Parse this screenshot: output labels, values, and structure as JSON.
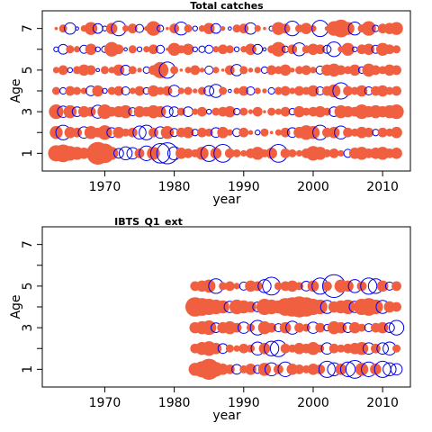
{
  "chart_data": [
    {
      "type": "bubble",
      "title": "Total catches",
      "xlabel": "year",
      "ylabel": "Age",
      "xlim": [
        1961,
        2014
      ],
      "ylim": [
        0.15,
        7.85
      ],
      "xticks": [
        1970,
        1980,
        1990,
        2000,
        2010
      ],
      "yticks": [
        1,
        2,
        3,
        4,
        5,
        6,
        7
      ],
      "ytick_labels": [
        "1",
        "",
        "3",
        "",
        "5",
        "",
        "7"
      ],
      "grid": false,
      "legend": "none",
      "years": [
        1963,
        2012
      ],
      "ages": [
        1,
        2,
        3,
        4,
        5,
        6,
        7
      ],
      "series": [
        {
          "kind": "filled",
          "color": "#F06040",
          "meaning": "positive residual"
        },
        {
          "kind": "open",
          "color": "#0000EE",
          "meaning": "negative residual"
        }
      ],
      "residuals": [
        {
          "age": 7,
          "values": [
            0.2,
            0.5,
            -0.7,
            -0.2,
            0.4,
            0.8,
            -0.6,
            -0.3,
            0.7,
            -0.9,
            0.4,
            0.6,
            -0.5,
            0.3,
            0.9,
            -0.4,
            0.2,
            0.6,
            -0.8,
            0.5,
            -0.3,
            0.4,
            0.7,
            -0.6,
            0.3,
            -0.2,
            0.5,
            0.6,
            -0.7,
            0.4,
            0.2,
            -0.3,
            0.8,
            0.6,
            -0.9,
            0.5,
            0.7,
            0.4,
            -1.0,
            0.3,
            0.9,
            1.1,
            0.8,
            -0.8,
            0.5,
            0.9,
            -0.4,
            0.6,
            0.7,
            0.8
          ]
        },
        {
          "age": 6,
          "values": [
            -0.3,
            -0.6,
            0.5,
            0.4,
            -0.5,
            0.7,
            -0.3,
            -0.4,
            0.9,
            0.6,
            -0.2,
            0.5,
            -0.3,
            0.4,
            0.6,
            -0.5,
            0.2,
            0.8,
            0.5,
            0.7,
            -0.3,
            -0.4,
            -0.5,
            0.4,
            0.6,
            0.5,
            -0.3,
            0.4,
            0.7,
            -0.6,
            -0.2,
            0.5,
            0.9,
            -0.4,
            0.6,
            -0.8,
            0.5,
            0.7,
            0.6,
            -0.5,
            -0.9,
            0.4,
            0.8,
            -0.3,
            0.6,
            0.7,
            -0.5,
            0.8,
            0.6,
            0.5
          ]
        },
        {
          "age": 5,
          "values": [
            0.4,
            0.6,
            -0.3,
            0.5,
            0.7,
            0.6,
            -0.2,
            0.5,
            0.4,
            0.7,
            -0.6,
            0.5,
            0.3,
            -0.4,
            0.6,
            1.0,
            -1.0,
            0.5,
            0.2,
            0.4,
            0.6,
            0.3,
            -0.5,
            0.4,
            0.2,
            0.6,
            -0.7,
            0.5,
            0.3,
            0.4,
            -0.4,
            0.6,
            0.5,
            0.7,
            0.3,
            0.5,
            0.6,
            0.4,
            -0.5,
            0.7,
            0.8,
            0.6,
            0.5,
            0.7,
            -0.4,
            0.8,
            0.6,
            0.5,
            0.7,
            0.6
          ]
        },
        {
          "age": 4,
          "values": [
            0.5,
            -0.4,
            0.6,
            0.5,
            0.4,
            -0.6,
            0.7,
            -0.3,
            0.5,
            0.6,
            -0.5,
            0.4,
            0.6,
            -0.4,
            0.7,
            0.5,
            0.6,
            -0.7,
            0.4,
            0.5,
            0.3,
            0.5,
            -0.6,
            -0.8,
            0.5,
            -0.2,
            0.4,
            0.6,
            -0.5,
            0.4,
            0.3,
            -0.4,
            0.5,
            0.6,
            0.4,
            0.6,
            0.5,
            0.7,
            -0.5,
            0.6,
            0.8,
            -1.0,
            0.6,
            0.5,
            0.7,
            -0.5,
            0.6,
            0.7,
            0.5,
            0.6
          ]
        },
        {
          "age": 3,
          "values": [
            0.9,
            -0.7,
            0.8,
            -0.6,
            0.7,
            0.6,
            -0.8,
            0.9,
            0.6,
            0.7,
            0.8,
            -0.5,
            0.7,
            0.6,
            0.8,
            0.7,
            -0.7,
            -0.6,
            0.5,
            -0.6,
            0.4,
            0.6,
            -0.3,
            0.5,
            0.6,
            0.7,
            -0.4,
            0.5,
            0.3,
            0.6,
            0.2,
            0.5,
            0.4,
            0.6,
            -0.4,
            0.7,
            0.5,
            0.6,
            0.7,
            0.5,
            -0.6,
            0.8,
            0.7,
            0.6,
            0.9,
            0.7,
            0.8,
            0.7,
            0.8,
            0.9
          ]
        },
        {
          "age": 2,
          "values": [
            0.8,
            -0.9,
            0.7,
            0.6,
            -0.7,
            0.8,
            0.6,
            0.9,
            -0.6,
            0.7,
            0.5,
            0.6,
            -0.8,
            -0.9,
            0.6,
            -0.7,
            0.8,
            -0.5,
            0.6,
            0.7,
            -0.4,
            0.6,
            0.5,
            -0.6,
            0.7,
            0.4,
            -0.5,
            0.6,
            0.3,
            -0.3,
            0.5,
            0.2,
            0.4,
            0.6,
            -0.6,
            0.7,
            0.9,
            0.8,
            -0.9,
            0.6,
            0.7,
            -0.8,
            0.6,
            0.5,
            0.7,
            0.6,
            -0.4,
            0.6,
            0.5,
            0.7
          ]
        },
        {
          "age": 1,
          "values": [
            1.0,
            1.1,
            0.9,
            0.8,
            0.7,
            0.6,
            1.4,
            1.2,
            0.8,
            -0.6,
            -0.8,
            -0.7,
            0.6,
            -0.9,
            0.8,
            -1.2,
            -1.3,
            -0.8,
            0.7,
            0.6,
            0.5,
            0.8,
            -1.0,
            0.7,
            -1.1,
            0.6,
            0.5,
            0.4,
            0.6,
            0.8,
            0.5,
            0.7,
            -1.1,
            0.6,
            0.5,
            0.4,
            0.6,
            0.9,
            0.8,
            0.5,
            0.6,
            0.4,
            -0.5,
            0.7,
            0.8,
            0.6,
            0.7,
            0.8,
            0.6,
            0.7
          ]
        }
      ]
    },
    {
      "type": "bubble",
      "title": "IBTS_Q1_ext",
      "xlabel": "year",
      "ylabel": "Age",
      "xlim": [
        1961,
        2014
      ],
      "ylim": [
        0.15,
        7.85
      ],
      "xticks": [
        1970,
        1980,
        1990,
        2000,
        2010
      ],
      "yticks": [
        1,
        2,
        3,
        4,
        5,
        6,
        7
      ],
      "ytick_labels": [
        "1",
        "",
        "3",
        "",
        "5",
        "",
        "7"
      ],
      "grid": false,
      "legend": "none",
      "years": [
        1983,
        2012
      ],
      "ages": [
        1,
        2,
        3,
        4,
        5
      ],
      "series": [
        {
          "kind": "filled",
          "color": "#F06040",
          "meaning": "positive residual"
        },
        {
          "kind": "open",
          "color": "#0000EE",
          "meaning": "negative residual"
        }
      ],
      "residuals": [
        {
          "age": 5,
          "values": [
            0.6,
            0.7,
            0.8,
            -0.9,
            0.5,
            0.6,
            0.4,
            -0.5,
            0.7,
            0.6,
            -0.8,
            -1.1,
            0.5,
            0.6,
            0.7,
            0.5,
            -0.6,
            0.7,
            -1.0,
            0.6,
            -1.4,
            0.8,
            0.7,
            -0.8,
            0.6,
            -1.0,
            -0.9,
            0.7,
            -0.5,
            0.6
          ]
        },
        {
          "age": 4,
          "values": [
            1.2,
            1.1,
            1.0,
            0.9,
            0.8,
            -0.7,
            0.9,
            0.8,
            0.7,
            -0.6,
            1.0,
            0.9,
            0.8,
            1.1,
            1.2,
            1.3,
            1.2,
            1.0,
            0.9,
            -0.8,
            0.7,
            0.8,
            0.9,
            -0.7,
            1.0,
            1.1,
            0.9,
            -0.8,
            0.7,
            0.6
          ]
        },
        {
          "age": 3,
          "values": [
            0.7,
            0.8,
            0.9,
            -0.6,
            0.7,
            0.8,
            0.6,
            -0.7,
            0.5,
            -0.9,
            0.8,
            0.6,
            -0.5,
            0.7,
            -0.8,
            0.6,
            0.5,
            -0.7,
            0.6,
            -0.4,
            0.8,
            0.7,
            -0.6,
            0.7,
            0.5,
            -0.5,
            0.6,
            0.7,
            -0.6,
            -0.9
          ]
        },
        {
          "age": 2,
          "values": [
            0.6,
            0.8,
            0.9,
            0.7,
            -0.6,
            0.5,
            0.4,
            0.6,
            0.5,
            -0.8,
            0.7,
            -0.9,
            -1.0,
            0.6,
            0.5,
            0.7,
            0.6,
            0.8,
            0.5,
            -0.7,
            0.6,
            0.5,
            0.6,
            0.7,
            0.8,
            -0.7,
            0.6,
            -0.7,
            -0.8,
            0.5
          ]
        },
        {
          "age": 1,
          "values": [
            0.8,
            1.0,
            1.3,
            0.9,
            0.7,
            0.6,
            -0.6,
            0.5,
            0.7,
            -0.5,
            0.8,
            -0.8,
            0.6,
            -0.9,
            0.7,
            0.6,
            0.5,
            0.7,
            0.6,
            -1.0,
            -0.8,
            0.7,
            -0.9,
            -1.1,
            0.8,
            -0.9,
            0.7,
            -1.0,
            -0.8,
            -0.7
          ]
        }
      ]
    }
  ]
}
